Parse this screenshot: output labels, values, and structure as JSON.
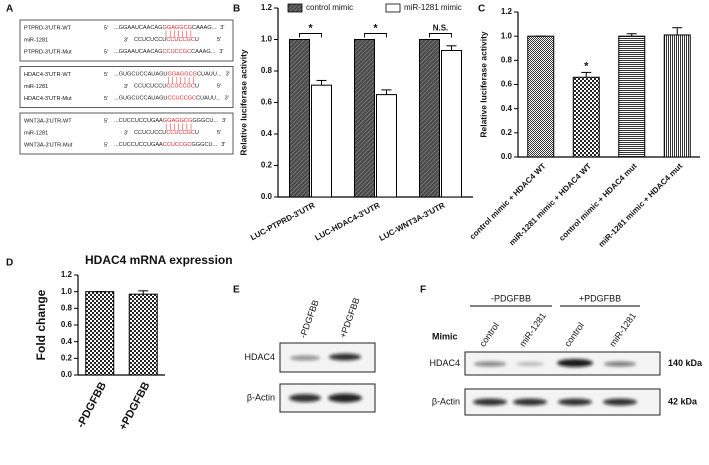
{
  "panel_labels": [
    "A",
    "B",
    "C",
    "D",
    "E",
    "F"
  ],
  "panel_a": {
    "boxes": [
      {
        "rows": [
          {
            "label": "PTPRD-3'UTR-WT",
            "left": "5'",
            "seq": [
              {
                "t": "...GGAAUCAACAG",
                "color": "#222222"
              },
              {
                "t": "GGAGGCG",
                "color": "#e0262b"
              },
              {
                "t": "CAAAG...",
                "color": "#222222"
              }
            ],
            "right": "3'"
          },
          {
            "label": "miR-1281",
            "left": "3'",
            "seq": [
              {
                "t": "CCUCUCCU",
                "color": "#222222"
              },
              {
                "t": "CCUCCGC",
                "color": "#e0262b"
              },
              {
                "t": "U",
                "color": "#222222"
              }
            ],
            "right": "5'"
          },
          {
            "label": "PTPRD-3'UTR-Mut",
            "left": "5'",
            "seq": [
              {
                "t": "...GGAAUCAACAG",
                "color": "#222222"
              },
              {
                "t": "CCUCCGC",
                "color": "#e0262b"
              },
              {
                "t": "CAAAG...",
                "color": "#222222"
              }
            ],
            "right": "3'"
          }
        ]
      },
      {
        "rows": [
          {
            "label": "HDAC4-3'UTR-WT",
            "left": "5'",
            "seq": [
              {
                "t": "...GUGCUCCAUAGU",
                "color": "#222222"
              },
              {
                "t": "GGAGGCG",
                "color": "#e0262b"
              },
              {
                "t": "CUAUU...",
                "color": "#222222"
              }
            ],
            "right": "3'"
          },
          {
            "label": "miR-1281",
            "left": "3'",
            "seq": [
              {
                "t": "CCUCUCCU",
                "color": "#222222"
              },
              {
                "t": "CCUCCGC",
                "color": "#e0262b"
              },
              {
                "t": "U",
                "color": "#222222"
              }
            ],
            "right": "5'"
          },
          {
            "label": "HDAC4-3'UTR-Mut",
            "left": "5'",
            "seq": [
              {
                "t": "...GUGCUCCAUAGU",
                "color": "#222222"
              },
              {
                "t": "CCUCCGC",
                "color": "#e0262b"
              },
              {
                "t": "CUAUU...",
                "color": "#222222"
              }
            ],
            "right": "3'"
          }
        ]
      },
      {
        "rows": [
          {
            "label": "WNT3A-3'UTR-WT",
            "left": "5'",
            "seq": [
              {
                "t": "...CUCCUCCUGAA",
                "color": "#222222"
              },
              {
                "t": "GGAGGCG",
                "color": "#e0262b"
              },
              {
                "t": "GGGCU...",
                "color": "#222222"
              }
            ],
            "right": "3'"
          },
          {
            "label": "miR-1281",
            "left": "3'",
            "seq": [
              {
                "t": "CCUCUCCU",
                "color": "#222222"
              },
              {
                "t": "CCUCCGC",
                "color": "#e0262b"
              },
              {
                "t": "U",
                "color": "#222222"
              }
            ],
            "right": "5'"
          },
          {
            "label": "WNT3A-3'UTR-Mut",
            "left": "5'",
            "seq": [
              {
                "t": "...CUCCUCCUGAA",
                "color": "#222222"
              },
              {
                "t": "CCUCCGC",
                "color": "#e0262b"
              },
              {
                "t": "GGGCU...",
                "color": "#222222"
              }
            ],
            "right": "3'"
          }
        ]
      }
    ]
  },
  "chart_data": [
    {
      "type": "bar",
      "ylabel": "Relative luciferase activity",
      "categories": [
        "LUC-PTPRD-3'UTR",
        "LUC-HDAC4-3'UTR",
        "LUC-WNT3A-3'UTR"
      ],
      "series": [
        {
          "name": "control mimic",
          "fill": "hatch-dark",
          "values": [
            1.0,
            1.0,
            1.0
          ],
          "errors": [
            0,
            0,
            0
          ]
        },
        {
          "name": "miR-1281 mimic",
          "fill": "plain-white",
          "values": [
            0.71,
            0.65,
            0.93
          ],
          "errors": [
            0.03,
            0.03,
            0.03
          ]
        }
      ],
      "annotations": [
        "*",
        "*",
        "N.S."
      ],
      "ylim": [
        0,
        1.2
      ],
      "yticks": [
        {
          "value": 0,
          "label": "0.0"
        },
        {
          "value": 0.2,
          "label": "0.2"
        },
        {
          "value": 0.4,
          "label": "0.4"
        },
        {
          "value": 0.6,
          "label": "0.6"
        },
        {
          "value": 0.8,
          "label": "0.8"
        },
        {
          "value": 1,
          "label": "1.0"
        },
        {
          "value": 1.2,
          "label": "1.2"
        }
      ]
    },
    {
      "type": "bar",
      "ylabel": "Relative luciferase activity",
      "categories": [
        "control mimic + HDAC4 WT",
        "miR-1281 mimic + HDAC4 WT",
        "control mimic + HDAC4 mut",
        "miR-1281 mimic + HDAC4 mut"
      ],
      "values": [
        1.0,
        0.66,
        1.0,
        1.01
      ],
      "errors": [
        0,
        0.04,
        0.02,
        0.06
      ],
      "fills": [
        "checker-s",
        "checker-l",
        "hlines",
        "vlines"
      ],
      "annotations": [
        null,
        "*",
        null,
        null
      ],
      "ylim": [
        0,
        1.2
      ],
      "yticks": [
        {
          "value": 0,
          "label": "0.0"
        },
        {
          "value": 0.2,
          "label": "0.2"
        },
        {
          "value": 0.4,
          "label": "0.4"
        },
        {
          "value": 0.6,
          "label": "0.6"
        },
        {
          "value": 0.8,
          "label": "0.8"
        },
        {
          "value": 1,
          "label": "1.0"
        },
        {
          "value": 1.2,
          "label": "1.2"
        }
      ]
    },
    {
      "type": "bar",
      "title": "HDAC4 mRNA expression",
      "ylabel": "Fold change",
      "categories": [
        "-PDGFBB",
        "+PDGFBB"
      ],
      "values": [
        1.0,
        0.97
      ],
      "errors": [
        0,
        0.04
      ],
      "fills": [
        "checker-l",
        "checker-l"
      ],
      "ylim": [
        0,
        1.2
      ],
      "yticks": [
        {
          "value": 0,
          "label": "0.0"
        },
        {
          "value": 0.2,
          "label": "0.2"
        },
        {
          "value": 0.4,
          "label": "0.4"
        },
        {
          "value": 0.6,
          "label": "0.6"
        },
        {
          "value": 0.8,
          "label": "0.8"
        },
        {
          "value": 1,
          "label": "1.0"
        },
        {
          "value": 1.2,
          "label": "1.2"
        }
      ]
    }
  ],
  "panel_e": {
    "columns": [
      "-PDGFBB",
      "+PDGFBB"
    ],
    "rows": [
      "HDAC4",
      "β-Actin"
    ]
  },
  "panel_f": {
    "groups": [
      "-PDGFBB",
      "+PDGFBB"
    ],
    "row_label": "Mimic",
    "columns": [
      "control",
      "miR-1281",
      "control",
      "miR-1281"
    ],
    "rows": [
      "HDAC4",
      "β-Actin"
    ],
    "sizes": [
      "140 kDa",
      "42 kDa"
    ]
  }
}
